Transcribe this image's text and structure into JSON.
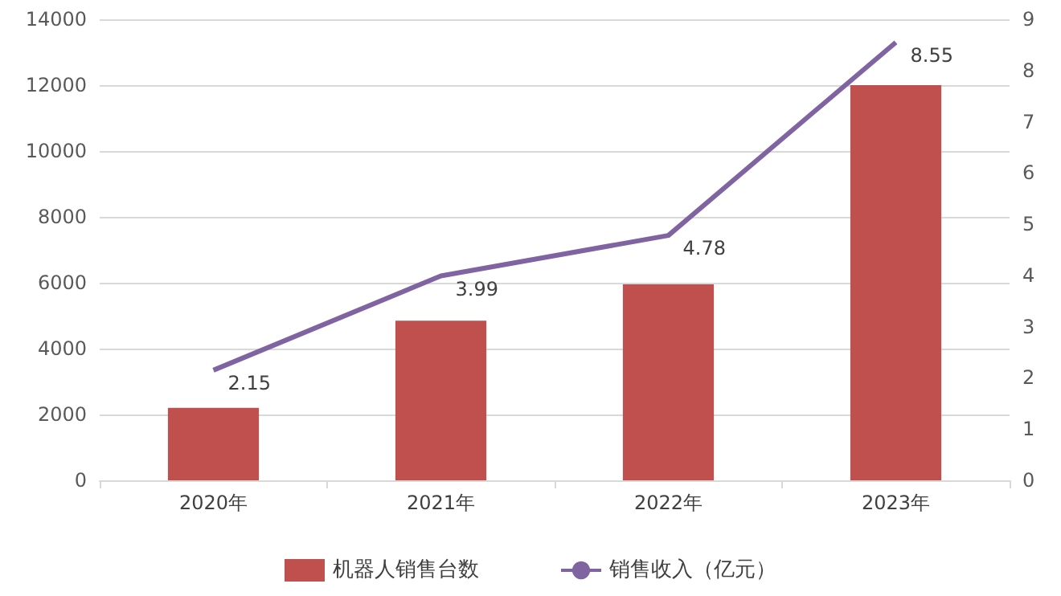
{
  "chart_data": {
    "type": "bar",
    "categories": [
      "2020年",
      "2021年",
      "2022年",
      "2023年"
    ],
    "series": [
      {
        "name": "机器人销售台数",
        "color": "#c0504d",
        "values": [
          2200,
          4850,
          5950,
          12000
        ]
      },
      {
        "name": "销售收入（亿元）",
        "type": "line",
        "axis": "y2",
        "color": "#8064a2",
        "values": [
          2.15,
          3.99,
          4.78,
          8.55
        ],
        "value_labels": [
          "2.15",
          "3.99",
          "4.78",
          "8.55"
        ]
      }
    ],
    "ylim": [
      0,
      14000
    ],
    "yticks": [
      0,
      2000,
      4000,
      6000,
      8000,
      10000,
      12000,
      14000
    ],
    "y2lim": [
      0,
      9
    ],
    "y2ticks": [
      0,
      1,
      2,
      3,
      4,
      5,
      6,
      7,
      8,
      9
    ],
    "grid": "y",
    "legend": "bottom",
    "marker": "none"
  }
}
